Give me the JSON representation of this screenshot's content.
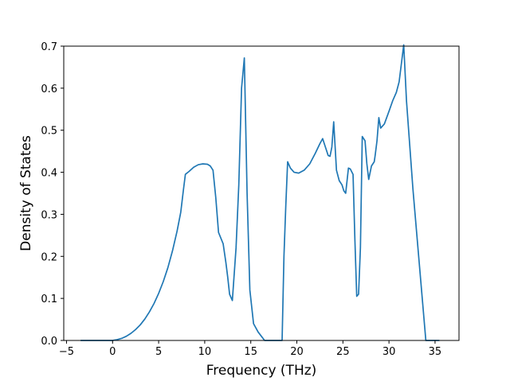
{
  "chart_data": {
    "type": "line",
    "title": "",
    "xlabel": "Frequency (THz)",
    "ylabel": "Density of States",
    "xlim": [
      -5.3,
      37.6
    ],
    "ylim": [
      0.0,
      0.7
    ],
    "xticks": [
      -5,
      0,
      5,
      10,
      15,
      20,
      25,
      30,
      35
    ],
    "yticks": [
      0.0,
      0.1,
      0.2,
      0.3,
      0.4,
      0.5,
      0.6,
      0.7
    ],
    "xtick_labels": [
      "−5",
      "0",
      "5",
      "10",
      "15",
      "20",
      "25",
      "30",
      "35"
    ],
    "ytick_labels": [
      "0.0",
      "0.1",
      "0.2",
      "0.3",
      "0.4",
      "0.5",
      "0.6",
      "0.7"
    ],
    "grid": false,
    "legend": false,
    "series": [
      {
        "color": "#1f77b4",
        "x": [
          -3.4,
          0.0,
          0.5,
          1.0,
          1.5,
          2.0,
          2.5,
          3.0,
          3.5,
          4.0,
          4.5,
          5.0,
          5.5,
          6.0,
          6.5,
          7.0,
          7.4,
          7.7,
          7.9,
          8.3,
          8.8,
          9.3,
          9.8,
          10.3,
          10.6,
          10.9,
          11.2,
          11.5,
          12.0,
          12.3,
          12.5,
          12.7,
          13.0,
          13.4,
          13.7,
          14.0,
          14.3,
          14.6,
          14.9,
          15.3,
          15.8,
          16.5,
          18.4,
          18.6,
          18.8,
          19.0,
          19.3,
          19.7,
          20.2,
          20.8,
          21.4,
          22.0,
          22.5,
          22.8,
          23.1,
          23.4,
          23.6,
          23.8,
          24.0,
          24.3,
          24.6,
          24.9,
          25.1,
          25.3,
          25.6,
          25.8,
          26.1,
          26.3,
          26.5,
          26.7,
          26.9,
          27.1,
          27.4,
          27.6,
          27.8,
          28.1,
          28.4,
          28.5,
          28.7,
          28.9,
          29.1,
          29.5,
          30.0,
          30.4,
          30.8,
          31.1,
          31.3,
          31.6,
          31.9,
          32.2,
          32.6,
          34.0,
          35.4
        ],
        "y": [
          0.0,
          0.0,
          0.002,
          0.005,
          0.01,
          0.017,
          0.026,
          0.037,
          0.051,
          0.068,
          0.088,
          0.112,
          0.14,
          0.173,
          0.213,
          0.26,
          0.305,
          0.36,
          0.395,
          0.402,
          0.412,
          0.418,
          0.42,
          0.419,
          0.415,
          0.405,
          0.34,
          0.257,
          0.23,
          0.185,
          0.15,
          0.11,
          0.095,
          0.22,
          0.37,
          0.6,
          0.672,
          0.35,
          0.12,
          0.04,
          0.02,
          0.0,
          0.0,
          0.2,
          0.32,
          0.425,
          0.41,
          0.4,
          0.398,
          0.405,
          0.42,
          0.445,
          0.468,
          0.48,
          0.46,
          0.44,
          0.438,
          0.46,
          0.52,
          0.405,
          0.38,
          0.37,
          0.356,
          0.35,
          0.41,
          0.408,
          0.395,
          0.24,
          0.105,
          0.11,
          0.22,
          0.485,
          0.475,
          0.42,
          0.383,
          0.415,
          0.425,
          0.44,
          0.475,
          0.53,
          0.505,
          0.515,
          0.545,
          0.57,
          0.59,
          0.615,
          0.65,
          0.703,
          0.57,
          0.48,
          0.36,
          0.0,
          0.0
        ]
      }
    ]
  }
}
